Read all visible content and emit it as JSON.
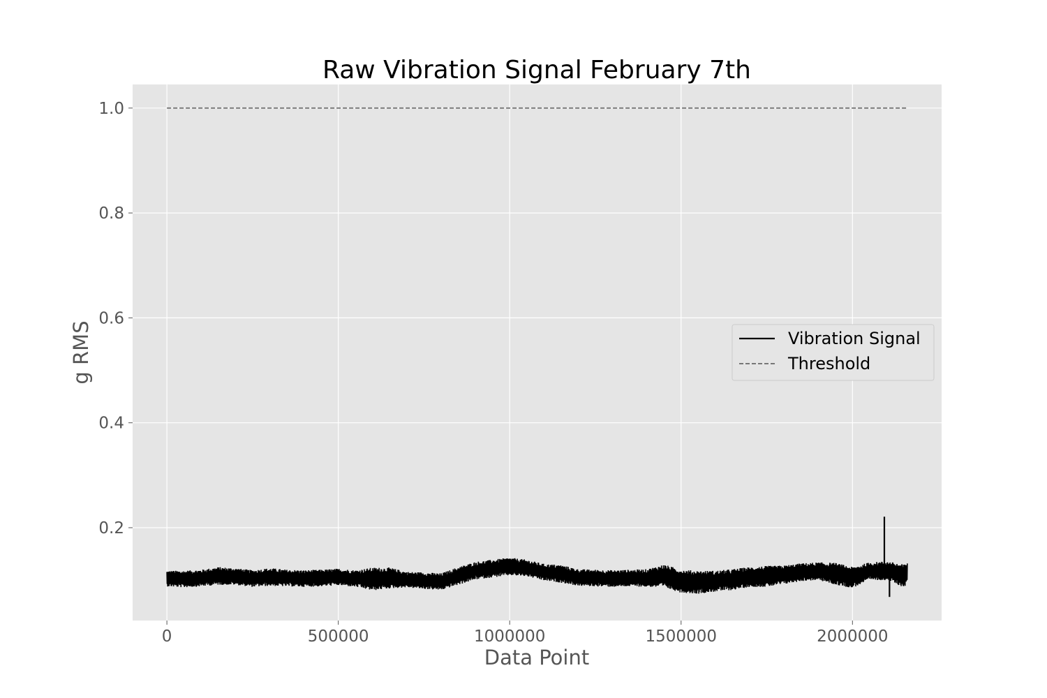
{
  "chart_data": {
    "type": "line",
    "title": "Raw Vibration Signal February 7th",
    "xlabel": "Data Point",
    "ylabel": "g RMS",
    "xlim": [
      -100000,
      2260000
    ],
    "ylim": [
      0.023,
      1.045
    ],
    "xticks": [
      0,
      500000,
      1000000,
      1500000,
      2000000
    ],
    "xtick_labels": [
      "0",
      "500000",
      "1000000",
      "1500000",
      "2000000"
    ],
    "yticks": [
      0.2,
      0.4,
      0.6,
      0.8,
      1.0
    ],
    "ytick_labels": [
      "0.2",
      "0.4",
      "0.6",
      "0.8",
      "1.0"
    ],
    "grid": true,
    "legend_position": "center-right",
    "background_color": "#e5e5e5",
    "series": [
      {
        "name": "Vibration Signal",
        "style": "solid",
        "color": "#000000",
        "x": [
          0,
          50000,
          100000,
          150000,
          200000,
          250000,
          300000,
          350000,
          400000,
          450000,
          500000,
          550000,
          600000,
          650000,
          700000,
          750000,
          800000,
          850000,
          900000,
          950000,
          1000000,
          1050000,
          1100000,
          1150000,
          1200000,
          1250000,
          1300000,
          1350000,
          1400000,
          1450000,
          1500000,
          1550000,
          1600000,
          1650000,
          1700000,
          1750000,
          1800000,
          1850000,
          1900000,
          1950000,
          2000000,
          2050000,
          2100000,
          2150000,
          2160000
        ],
        "mean": [
          0.103,
          0.102,
          0.104,
          0.108,
          0.107,
          0.103,
          0.106,
          0.104,
          0.103,
          0.104,
          0.106,
          0.103,
          0.102,
          0.104,
          0.101,
          0.099,
          0.097,
          0.108,
          0.118,
          0.122,
          0.126,
          0.123,
          0.115,
          0.112,
          0.105,
          0.104,
          0.103,
          0.104,
          0.104,
          0.108,
          0.098,
          0.096,
          0.098,
          0.101,
          0.106,
          0.107,
          0.11,
          0.115,
          0.117,
          0.112,
          0.105,
          0.117,
          0.118,
          0.108,
          0.115
        ],
        "amplitude": [
          0.015,
          0.016,
          0.016,
          0.017,
          0.016,
          0.016,
          0.017,
          0.016,
          0.016,
          0.016,
          0.016,
          0.016,
          0.022,
          0.02,
          0.015,
          0.016,
          0.016,
          0.017,
          0.017,
          0.017,
          0.017,
          0.016,
          0.016,
          0.017,
          0.016,
          0.016,
          0.016,
          0.016,
          0.017,
          0.022,
          0.022,
          0.022,
          0.02,
          0.02,
          0.019,
          0.02,
          0.018,
          0.017,
          0.017,
          0.021,
          0.02,
          0.017,
          0.018,
          0.022,
          0.022
        ],
        "spikes": [
          {
            "x": 2093000,
            "y": 0.221
          },
          {
            "x": 2108000,
            "y": 0.068
          }
        ]
      },
      {
        "name": "Threshold",
        "style": "dashed",
        "color": "#777777",
        "x": [
          0,
          2160000
        ],
        "y": [
          1.0,
          1.0
        ]
      }
    ]
  }
}
